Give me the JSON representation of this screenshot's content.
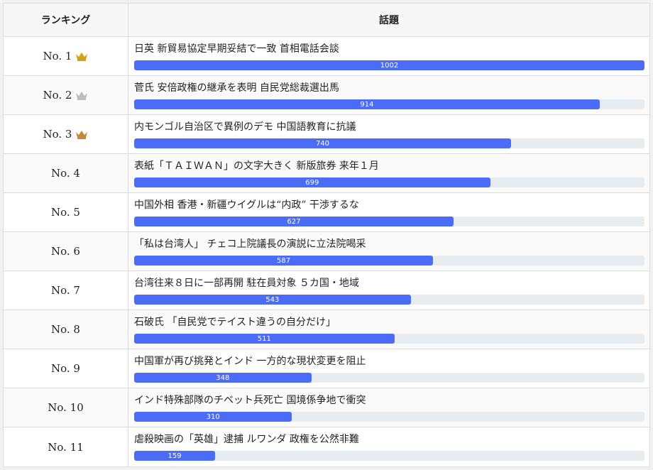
{
  "header": {
    "rank_label": "ランキング",
    "topic_label": "話題"
  },
  "max_value": 1002,
  "colors": {
    "gold": "#d4a017",
    "silver": "#bdbdbd",
    "bronze": "#c8873a",
    "bar": "#4a6cf7",
    "track": "#e9ecef"
  },
  "rows": [
    {
      "rank": "No. 1",
      "crown": "gold",
      "title": "日英 新貿易協定早期妥結で一致 首相電話会談",
      "value": 1002
    },
    {
      "rank": "No. 2",
      "crown": "silver",
      "title": "菅氏 安倍政権の継承を表明 自民党総裁選出馬",
      "value": 914
    },
    {
      "rank": "No. 3",
      "crown": "bronze",
      "title": "内モンゴル自治区で異例のデモ 中国語教育に抗議",
      "value": 740
    },
    {
      "rank": "No. 4",
      "crown": "",
      "title": "表紙「ＴＡＩＷＡＮ」の文字大きく 新版旅券 来年１月",
      "value": 699
    },
    {
      "rank": "No. 5",
      "crown": "",
      "title": "中国外相 香港・新疆ウイグルは“内政” 干渉するな",
      "value": 627
    },
    {
      "rank": "No. 6",
      "crown": "",
      "title": "「私は台湾人」 チェコ上院議長の演説に立法院喝采",
      "value": 587
    },
    {
      "rank": "No. 7",
      "crown": "",
      "title": "台湾往来８日に一部再開 駐在員対象 ５カ国・地域",
      "value": 543
    },
    {
      "rank": "No. 8",
      "crown": "",
      "title": "石破氏 「自民党でテイスト違うの自分だけ」",
      "value": 511
    },
    {
      "rank": "No. 9",
      "crown": "",
      "title": "中国軍が再び挑発とインド 一方的な現状変更を阻止",
      "value": 348
    },
    {
      "rank": "No. 10",
      "crown": "",
      "title": "インド特殊部隊のチベット兵死亡 国境係争地で衝突",
      "value": 310
    },
    {
      "rank": "No. 11",
      "crown": "",
      "title": "虐殺映画の「英雄」逮捕 ルワンダ 政権を公然非難",
      "value": 159
    }
  ]
}
